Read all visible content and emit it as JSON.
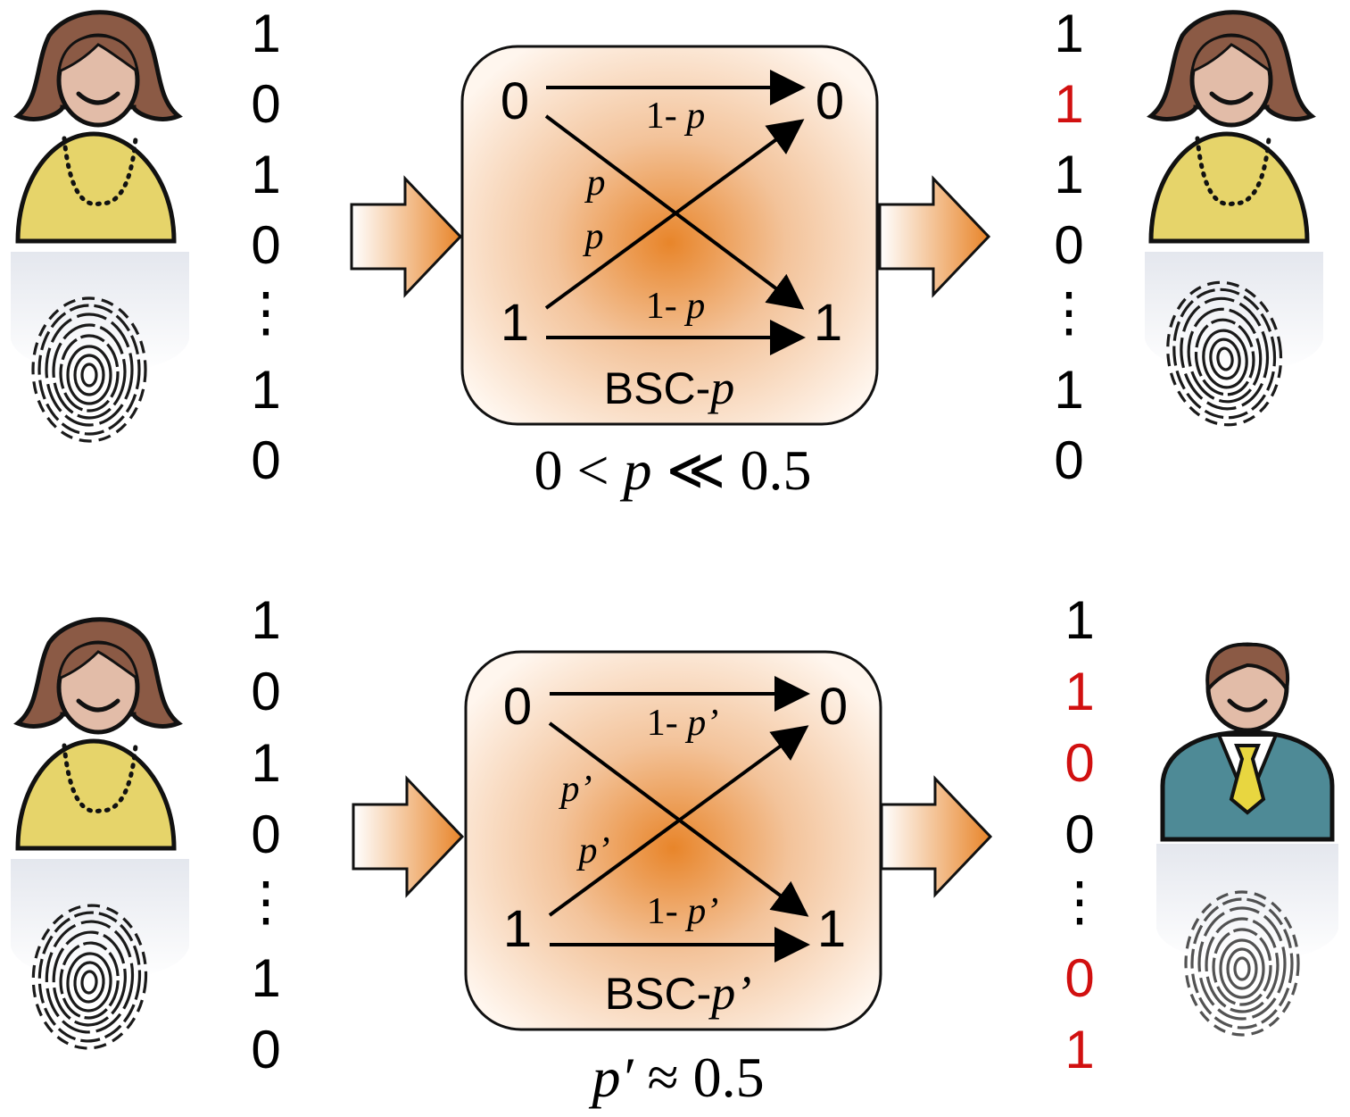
{
  "colors": {
    "flipped_bit": "#d11010",
    "channel_center": "#e8852a",
    "woman_shirt": "#e6d46a",
    "woman_hair": "#8b5a45",
    "man_suit": "#4e8a96",
    "man_tie": "#e8d640",
    "skin": "#e2bca8"
  },
  "icons": {
    "sender_top": "woman-icon",
    "receiver_top": "woman-icon",
    "sender_bottom": "woman-icon",
    "receiver_bottom": "man-icon",
    "biometric": "fingerprint-icon",
    "flow": "block-arrow-icon"
  },
  "top": {
    "input_bits": [
      "1",
      "0",
      "1",
      "0",
      "⋮",
      "1",
      "0"
    ],
    "output_bits": [
      "1",
      "1",
      "1",
      "0",
      "⋮",
      "1",
      "0"
    ],
    "output_flipped": [
      false,
      true,
      false,
      false,
      false,
      false,
      false
    ],
    "channel": {
      "in0": "0",
      "in1": "1",
      "out0": "0",
      "out1": "1",
      "keep_prefix": "1- ",
      "keep_var": "p",
      "cross_top": "p",
      "cross_bottom": "p",
      "label_prefix": "BSC-",
      "label_var": "p"
    },
    "condition": {
      "a": "0 < ",
      "var": "p",
      "b": " ≪ 0.5"
    }
  },
  "bottom": {
    "input_bits": [
      "1",
      "0",
      "1",
      "0",
      "⋮",
      "1",
      "0"
    ],
    "output_bits": [
      "1",
      "1",
      "0",
      "0",
      "⋮",
      "0",
      "1"
    ],
    "output_flipped": [
      false,
      true,
      true,
      false,
      false,
      true,
      true
    ],
    "channel": {
      "in0": "0",
      "in1": "1",
      "out0": "0",
      "out1": "1",
      "keep_prefix": "1- ",
      "keep_var": "p’",
      "cross_top": "p’",
      "cross_bottom": "p’",
      "label_prefix": "BSC-",
      "label_var": "p’"
    },
    "condition": {
      "a": "",
      "var": "p′",
      "b": " ≈ 0.5"
    }
  }
}
